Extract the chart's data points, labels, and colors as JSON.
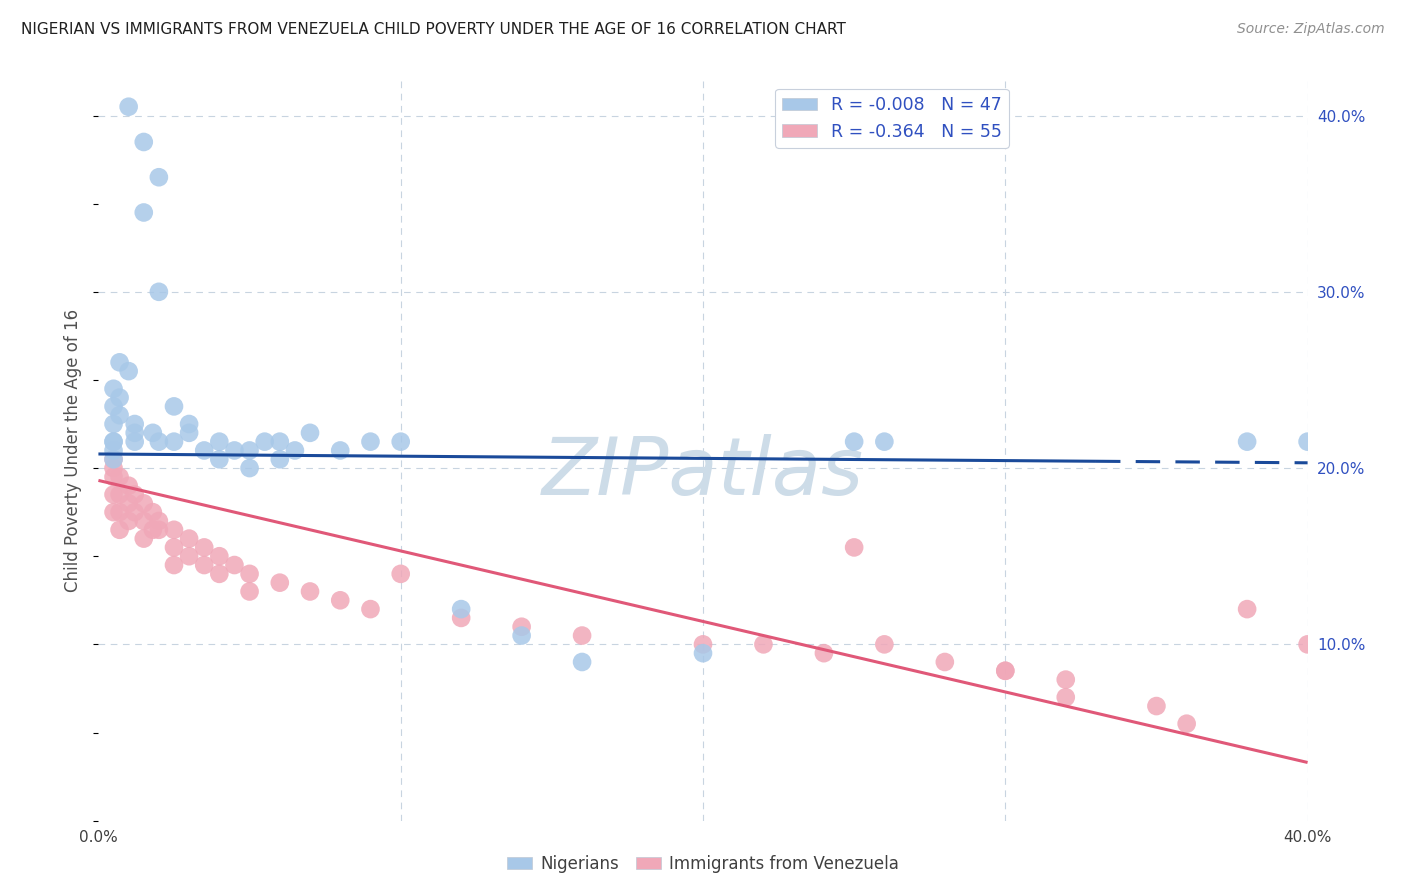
{
  "title": "NIGERIAN VS IMMIGRANTS FROM VENEZUELA CHILD POVERTY UNDER THE AGE OF 16 CORRELATION CHART",
  "source": "Source: ZipAtlas.com",
  "ylabel": "Child Poverty Under the Age of 16",
  "r1": "-0.008",
  "n1": "47",
  "r2": "-0.364",
  "n2": "55",
  "color_blue": "#a8c8e8",
  "color_pink": "#f0a8b8",
  "color_blue_line": "#1a4a9a",
  "color_pink_line": "#e05878",
  "color_blue_text": "#3050c0",
  "color_grid": "#c8d4e0",
  "watermark_color": "#cddce8",
  "xlim": [
    0.0,
    0.4
  ],
  "ylim": [
    0.0,
    0.42
  ],
  "nigerian_x": [
    0.01,
    0.015,
    0.02,
    0.015,
    0.02,
    0.01,
    0.005,
    0.005,
    0.005,
    0.005,
    0.005,
    0.005,
    0.005,
    0.007,
    0.007,
    0.007,
    0.012,
    0.012,
    0.012,
    0.018,
    0.02,
    0.025,
    0.025,
    0.03,
    0.03,
    0.035,
    0.04,
    0.04,
    0.045,
    0.05,
    0.05,
    0.055,
    0.06,
    0.06,
    0.065,
    0.07,
    0.08,
    0.09,
    0.1,
    0.12,
    0.14,
    0.16,
    0.2,
    0.25,
    0.26,
    0.38,
    0.4
  ],
  "nigerian_y": [
    0.405,
    0.385,
    0.365,
    0.345,
    0.3,
    0.255,
    0.245,
    0.235,
    0.225,
    0.215,
    0.215,
    0.21,
    0.205,
    0.26,
    0.24,
    0.23,
    0.225,
    0.22,
    0.215,
    0.22,
    0.215,
    0.235,
    0.215,
    0.225,
    0.22,
    0.21,
    0.215,
    0.205,
    0.21,
    0.21,
    0.2,
    0.215,
    0.215,
    0.205,
    0.21,
    0.22,
    0.21,
    0.215,
    0.215,
    0.12,
    0.105,
    0.09,
    0.095,
    0.215,
    0.215,
    0.215,
    0.215
  ],
  "venezuela_x": [
    0.005,
    0.005,
    0.005,
    0.005,
    0.005,
    0.007,
    0.007,
    0.007,
    0.007,
    0.01,
    0.01,
    0.01,
    0.012,
    0.012,
    0.015,
    0.015,
    0.015,
    0.018,
    0.018,
    0.02,
    0.02,
    0.025,
    0.025,
    0.025,
    0.03,
    0.03,
    0.035,
    0.035,
    0.04,
    0.04,
    0.045,
    0.05,
    0.05,
    0.06,
    0.07,
    0.08,
    0.09,
    0.1,
    0.12,
    0.14,
    0.16,
    0.2,
    0.22,
    0.24,
    0.26,
    0.28,
    0.3,
    0.32,
    0.35,
    0.38,
    0.4,
    0.25,
    0.3,
    0.32,
    0.36
  ],
  "venezuela_y": [
    0.205,
    0.2,
    0.195,
    0.185,
    0.175,
    0.195,
    0.185,
    0.175,
    0.165,
    0.19,
    0.18,
    0.17,
    0.185,
    0.175,
    0.18,
    0.17,
    0.16,
    0.175,
    0.165,
    0.17,
    0.165,
    0.165,
    0.155,
    0.145,
    0.16,
    0.15,
    0.155,
    0.145,
    0.15,
    0.14,
    0.145,
    0.14,
    0.13,
    0.135,
    0.13,
    0.125,
    0.12,
    0.14,
    0.115,
    0.11,
    0.105,
    0.1,
    0.1,
    0.095,
    0.1,
    0.09,
    0.085,
    0.08,
    0.065,
    0.12,
    0.1,
    0.155,
    0.085,
    0.07,
    0.055
  ]
}
